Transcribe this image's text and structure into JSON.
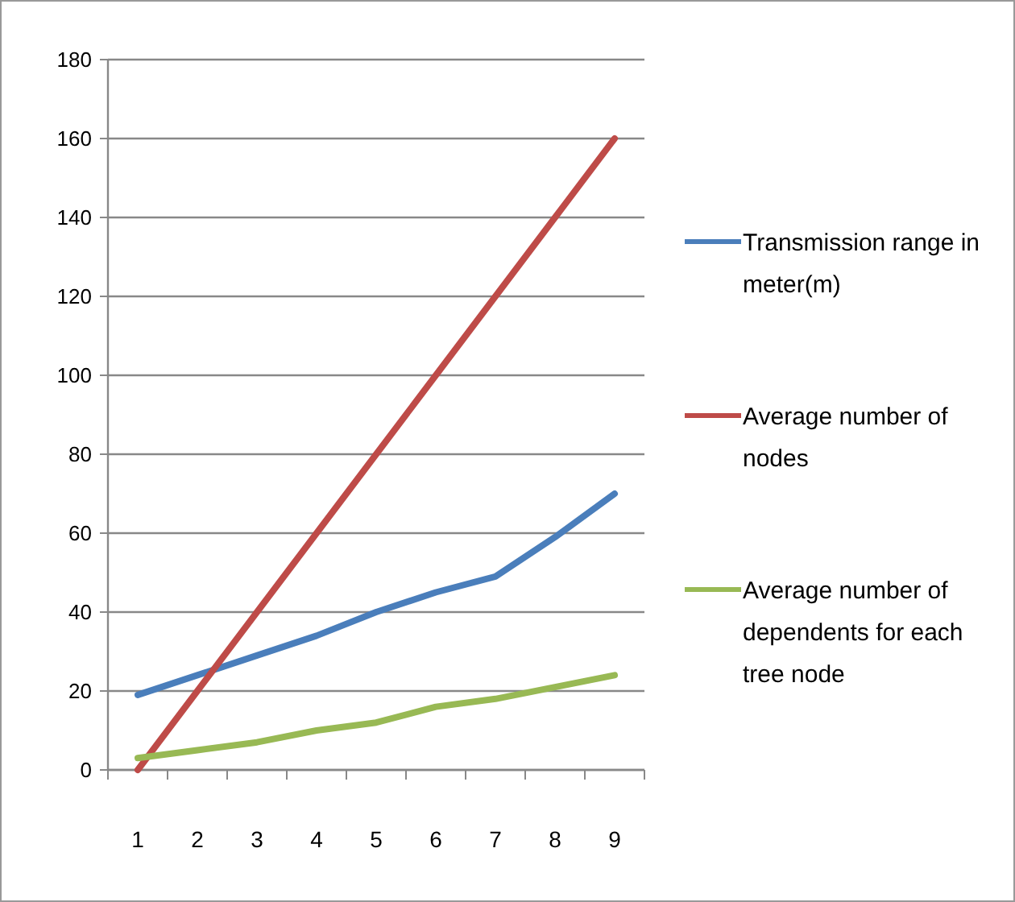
{
  "chart_data": {
    "type": "line",
    "categories": [
      "1",
      "2",
      "3",
      "4",
      "5",
      "6",
      "7",
      "8",
      "9"
    ],
    "series": [
      {
        "name": "Transmission range in meter(m)",
        "color": "#4a7ebb",
        "values": [
          19,
          24,
          29,
          34,
          40,
          45,
          49,
          59,
          70
        ]
      },
      {
        "name": "Average number of nodes",
        "color": "#be4b48",
        "values": [
          0,
          20,
          40,
          60,
          80,
          100,
          120,
          140,
          160
        ]
      },
      {
        "name": "Average number of dependents for each tree node",
        "color": "#98b954",
        "values": [
          3,
          5,
          7,
          10,
          12,
          16,
          18,
          21,
          24
        ]
      }
    ],
    "ylim": [
      0,
      180
    ],
    "yticks": [
      0,
      20,
      40,
      60,
      80,
      100,
      120,
      140,
      160,
      180
    ],
    "grid": "y",
    "legend": "right",
    "marker": "none",
    "line_style": "solid"
  }
}
